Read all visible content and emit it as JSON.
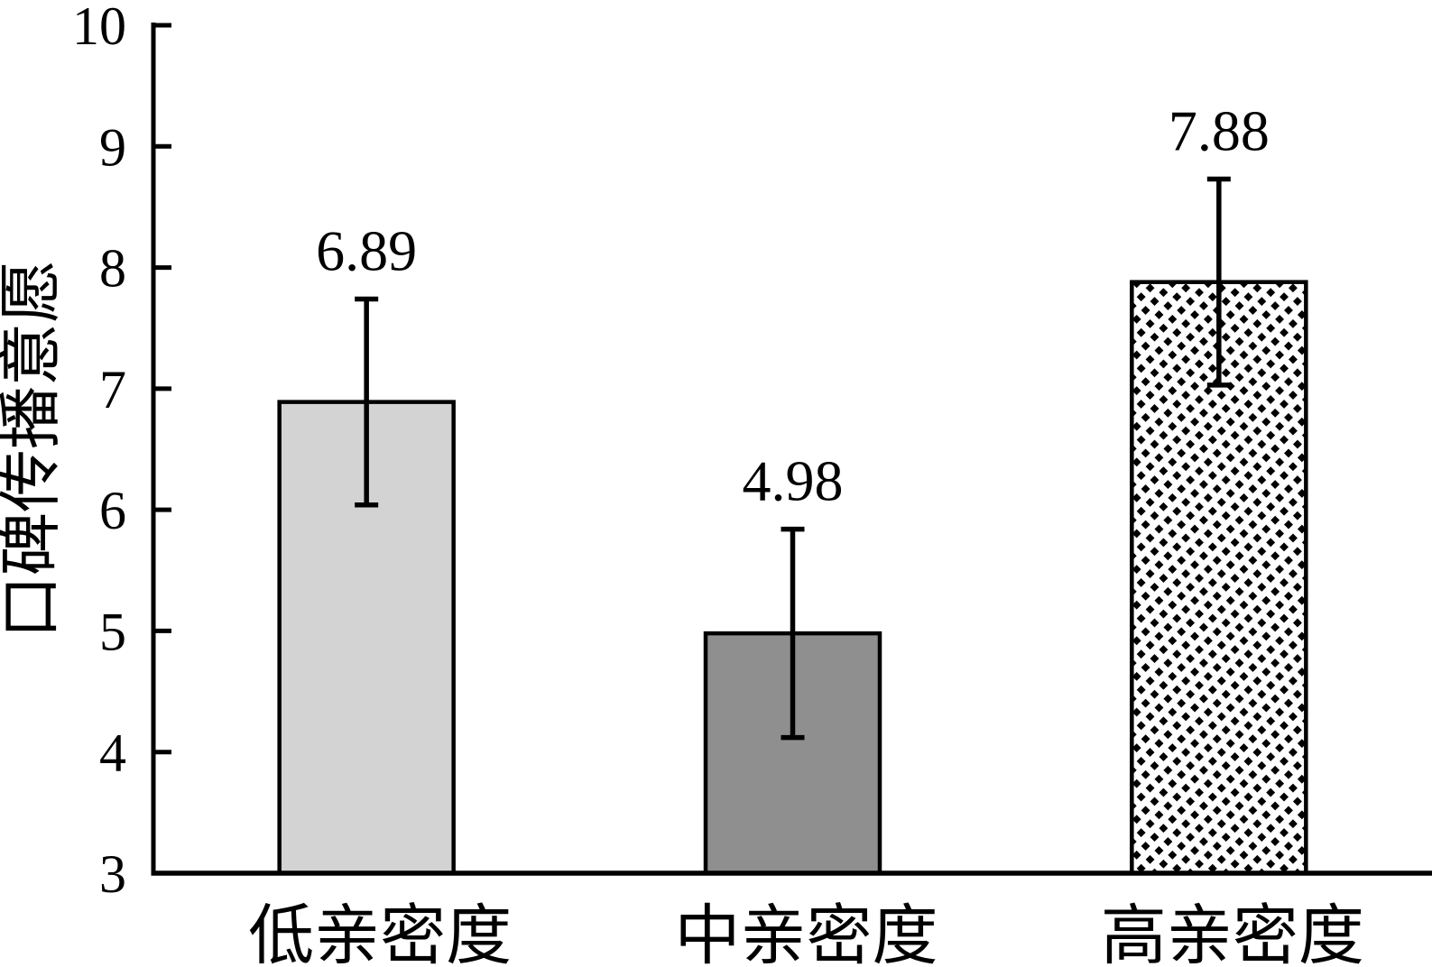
{
  "chart_data": {
    "type": "bar",
    "title": "",
    "ylabel": "口碑传播意愿",
    "xlabel": "",
    "categories": [
      "低亲密度",
      "中亲密度",
      "高亲密度"
    ],
    "values": [
      6.89,
      4.98,
      7.88
    ],
    "value_labels": [
      "6.89",
      "4.98",
      "7.88"
    ],
    "error_bars": [
      0.85,
      0.86,
      0.85
    ],
    "ylim": [
      3,
      10
    ],
    "yticks": [
      "3",
      "4",
      "5",
      "6",
      "7",
      "8",
      "9",
      "10"
    ],
    "grid": false,
    "legend": null,
    "bar_styles": [
      {
        "fill": "#d3d3d3",
        "hatch": "none",
        "edge": "#000000"
      },
      {
        "fill": "#8f8f8f",
        "hatch": "none",
        "edge": "#000000"
      },
      {
        "fill": "#ffffff",
        "hatch": "diagonal-dash",
        "edge": "#000000"
      }
    ],
    "colors": {
      "axis": "#000000",
      "text": "#000000",
      "background": "#ffffff"
    }
  }
}
